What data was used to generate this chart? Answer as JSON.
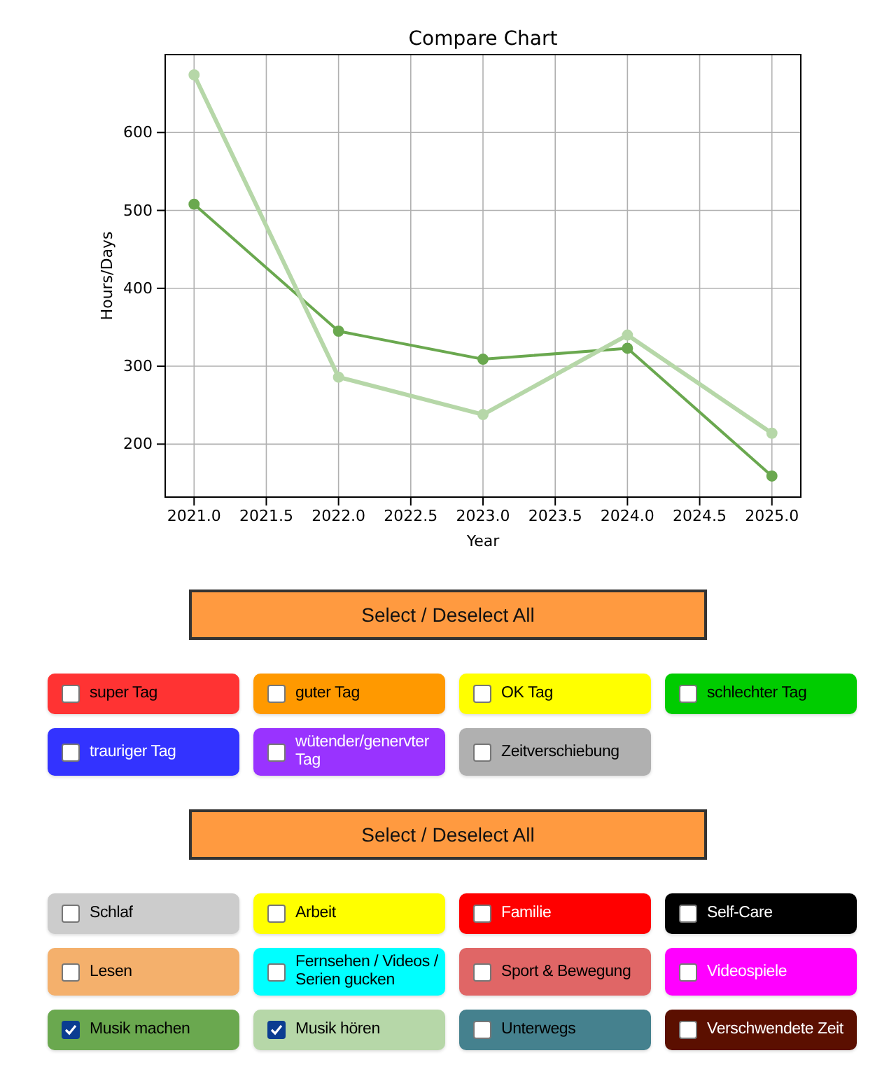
{
  "chart_data": [
    {
      "type": "line",
      "title": "Compare Chart",
      "xlabel": "Year",
      "ylabel": "Hours/Days",
      "x": [
        2021,
        2022,
        2023,
        2024,
        2025
      ],
      "marker": "circle",
      "grid": true,
      "xlim": [
        2020.8,
        2025.2
      ],
      "ylim": [
        132,
        700
      ],
      "xticks": [
        {
          "value": 2021,
          "label": "2021.0"
        },
        {
          "value": 2021.5,
          "label": "2021.5"
        },
        {
          "value": 2022,
          "label": "2022.0"
        },
        {
          "value": 2022.5,
          "label": "2022.5"
        },
        {
          "value": 2023,
          "label": "2023.0"
        },
        {
          "value": 2023.5,
          "label": "2023.5"
        },
        {
          "value": 2024,
          "label": "2024.0"
        },
        {
          "value": 2024.5,
          "label": "2024.5"
        },
        {
          "value": 2025,
          "label": "2025.0"
        }
      ],
      "yticks": [
        200,
        300,
        400,
        500,
        600
      ],
      "series": [
        {
          "color": "#6aa84f",
          "values": [
            508,
            345,
            309,
            323,
            159
          ]
        },
        {
          "color": "#b6d7a8",
          "values": [
            674,
            286,
            238,
            340,
            214
          ]
        }
      ]
    },
    {
      "type": "other",
      "annotations": [
        "Select / Deselect All"
      ],
      "categories": [
        "super Tag",
        "guter Tag",
        "OK Tag",
        "schlechter Tag",
        "trauriger Tag",
        "wütender/genervter Tag",
        "Zeitverschiebung"
      ],
      "colors": [
        "#ff3333",
        "#ff9900",
        "#ffff00",
        "#00cc00",
        "#3333ff",
        "#9933ff",
        "#b0b0b0"
      ]
    },
    {
      "type": "other",
      "annotations": [
        "Select / Deselect All"
      ],
      "categories": [
        "Schlaf",
        "Arbeit",
        "Familie",
        "Self-Care",
        "Lesen",
        "Fernsehen / Videos / Serien gucken",
        "Sport & Bewegung",
        "Videospiele",
        "Musik machen",
        "Musik hören",
        "Unterwegs",
        "Verschwendete Zeit"
      ],
      "colors": [
        "#cccccc",
        "#ffff00",
        "#ff0000",
        "#000000",
        "#f4b06c",
        "#00ffff",
        "#e06666",
        "#ff00ff",
        "#6aa84f",
        "#b6d7a8",
        "#45818e",
        "#5b0f00"
      ]
    }
  ]
}
